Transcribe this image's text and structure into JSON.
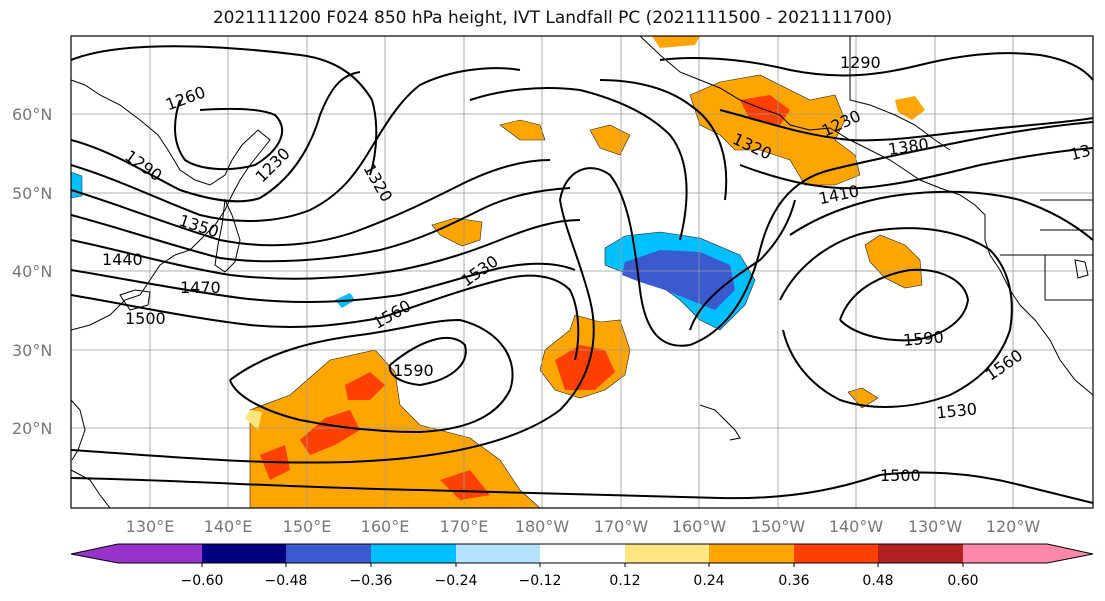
{
  "title": "2021111200 F024 850 hPa height, IVT Landfall PC (2021111500 - 2021111700)",
  "map": {
    "lon_labels": [
      "130°E",
      "140°E",
      "150°E",
      "160°E",
      "170°E",
      "180°W",
      "170°W",
      "160°W",
      "150°W",
      "140°W",
      "130°W",
      "120°W"
    ],
    "lat_labels": [
      "60°N",
      "50°N",
      "40°N",
      "30°N",
      "20°N"
    ],
    "contour_labels": [
      "1260",
      "1290",
      "1230",
      "1320",
      "1350",
      "1440",
      "1470",
      "1500",
      "1530",
      "1560",
      "1590",
      "1290",
      "1230",
      "1410",
      "1590",
      "1560",
      "1530",
      "1500",
      "1320",
      "1380",
      "13"
    ]
  },
  "colorbar": {
    "tick_labels": [
      "−0.60",
      "−0.48",
      "−0.36",
      "−0.24",
      "−0.12",
      "0.12",
      "0.24",
      "0.36",
      "0.48",
      "0.60"
    ],
    "colors": [
      "#9933cc",
      "#000080",
      "#3a5bd0",
      "#00bfff",
      "#b3e3ff",
      "#ffffff",
      "#ffe680",
      "#ffa500",
      "#ff4000",
      "#b22222",
      "#ff88aa"
    ]
  }
}
